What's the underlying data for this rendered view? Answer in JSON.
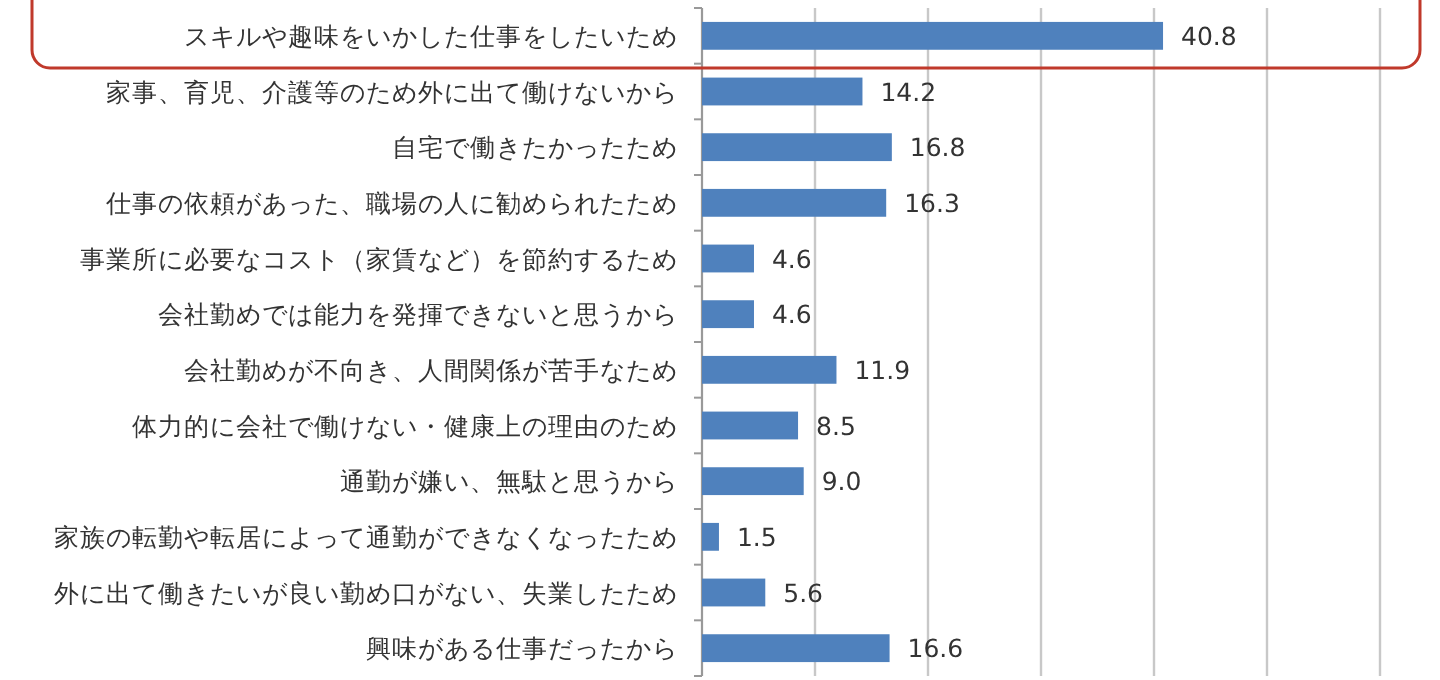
{
  "chart_data": {
    "type": "bar",
    "orientation": "horizontal",
    "categories": [
      "スキルや趣味をいかした仕事をしたいため",
      "家事、育児、介護等のため外に出て働けないから",
      "自宅で働きたかったため",
      "仕事の依頼があった、職場の人に勧められたため",
      "事業所に必要なコスト（家賃など）を節約するため",
      "会社勤めでは能力を発揮できないと思うから",
      "会社勤めが不向き、人間関係が苦手なため",
      "体力的に会社で働けない・健康上の理由のため",
      "通勤が嫌い、無駄と思うから",
      "家族の転勤や転居によって通勤ができなくなったため",
      "外に出て働きたいが良い勤め口がない、失業したため",
      "興味がある仕事だったから"
    ],
    "series": [
      {
        "color": "#4f81bd",
        "values": [
          40.8,
          14.2,
          16.8,
          16.3,
          4.6,
          4.6,
          11.9,
          8.5,
          9.0,
          1.5,
          5.6,
          16.6
        ],
        "value_labels": [
          "40.8",
          "14.2",
          "16.8",
          "16.3",
          "4.6",
          "4.6",
          "11.9",
          "8.5",
          "9.0",
          "1.5",
          "5.6",
          "16.6"
        ]
      }
    ],
    "xlim": [
      0,
      60
    ],
    "xticks": [
      {
        "value": 0,
        "label": null
      },
      {
        "value": 10,
        "label": null
      },
      {
        "value": 20,
        "label": null
      },
      {
        "value": 30,
        "label": null
      },
      {
        "value": 40,
        "label": null
      },
      {
        "value": 50,
        "label": null
      },
      {
        "value": 60,
        "label": null
      }
    ],
    "grid": "x",
    "tick_labels": "y"
  }
}
